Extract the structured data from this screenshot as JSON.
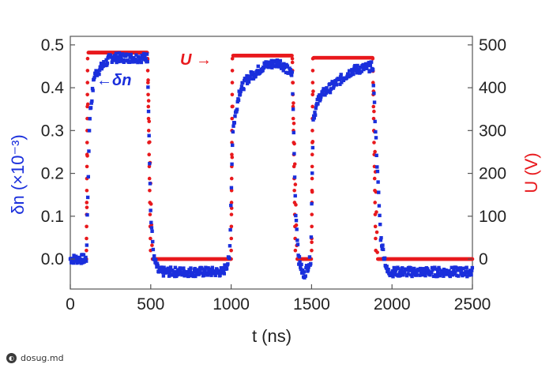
{
  "chart_data": {
    "type": "scatter",
    "xlabel": "t (ns)",
    "xlim": [
      0,
      2500
    ],
    "x_ticks": [
      "0",
      "500",
      "1000",
      "1500",
      "2000",
      "2500"
    ],
    "ylim_left": [
      -0.07,
      0.52
    ],
    "left_ticks": [
      "0.0",
      "0.1",
      "0.2",
      "0.3",
      "0.4",
      "0.5"
    ],
    "left_label": "δn (×10⁻³)",
    "ylim_right": [
      -70,
      520
    ],
    "right_ticks": [
      "0",
      "100",
      "200",
      "300",
      "400",
      "500"
    ],
    "right_label": "U (V)",
    "grid": false,
    "annotations": [
      {
        "text": "←δn",
        "color": "#1a2fdc"
      },
      {
        "text": "U →",
        "color": "#e8191d"
      }
    ],
    "series": [
      {
        "name": "U",
        "axis": "right",
        "color": "#e8191d",
        "pulses": [
          {
            "on": 100,
            "off": 480,
            "level": 482
          },
          {
            "on": 1000,
            "off": 1380,
            "level": 475
          },
          {
            "on": 1500,
            "off": 1880,
            "level": 470
          }
        ],
        "baseline": 0,
        "x_range": [
          100,
          2500
        ]
      },
      {
        "name": "δn",
        "axis": "left",
        "color": "#1a2fdc",
        "points": [
          [
            0,
            0.0
          ],
          [
            100,
            0.0
          ],
          [
            120,
            0.33
          ],
          [
            150,
            0.43
          ],
          [
            250,
            0.47
          ],
          [
            480,
            0.47
          ],
          [
            500,
            0.1
          ],
          [
            520,
            0.0
          ],
          [
            550,
            -0.03
          ],
          [
            950,
            -0.03
          ],
          [
            990,
            0.0
          ],
          [
            1010,
            0.3
          ],
          [
            1050,
            0.39
          ],
          [
            1100,
            0.42
          ],
          [
            1200,
            0.45
          ],
          [
            1300,
            0.46
          ],
          [
            1380,
            0.43
          ],
          [
            1400,
            0.12
          ],
          [
            1420,
            0.0
          ],
          [
            1450,
            -0.04
          ],
          [
            1495,
            0.0
          ],
          [
            1510,
            0.33
          ],
          [
            1550,
            0.38
          ],
          [
            1650,
            0.41
          ],
          [
            1750,
            0.44
          ],
          [
            1880,
            0.45
          ],
          [
            1910,
            0.2
          ],
          [
            1930,
            0.05
          ],
          [
            1970,
            -0.03
          ],
          [
            2500,
            -0.03
          ]
        ]
      }
    ]
  },
  "watermark": {
    "text": "dosug.md",
    "icon": "badge-icon"
  }
}
